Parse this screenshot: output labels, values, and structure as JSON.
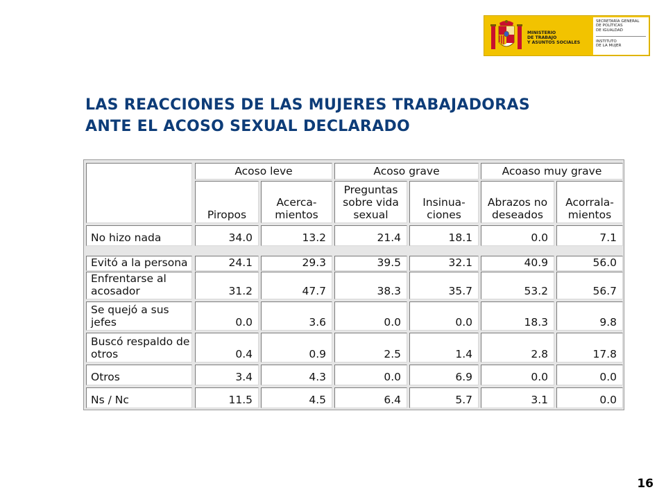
{
  "logo": {
    "ministry": "MINISTERIO\nDE TRABAJO\nY ASUNTOS SOCIALES",
    "secretaria": "SECRETARÍA GENERAL\nDE POLÍTICAS\nDE IGUALDAD",
    "instituto": "INSTITUTO\nDE LA MUJER"
  },
  "title": {
    "line1": "LAS REACCIONES DE LAS MUJERES TRABAJADORAS",
    "line2": "ANTE EL ACOSO SEXUAL DECLARADO"
  },
  "table": {
    "groups": [
      "Acoso leve",
      "Acoso grave",
      "Acoaso muy grave"
    ],
    "columns": [
      "Piropos",
      "Acerca-\nmientos",
      "Preguntas\nsobre vida\nsexual",
      "Insinua-\nciones",
      "Abrazos no\ndeseados",
      "Acorrala-\nmientos"
    ],
    "rows": [
      {
        "label": "No hizo nada",
        "values": [
          "34.0",
          "13.2",
          "21.4",
          "18.1",
          "0.0",
          "7.1"
        ]
      },
      {
        "label": "Evitó a la persona",
        "values": [
          "24.1",
          "29.3",
          "39.5",
          "32.1",
          "40.9",
          "56.0"
        ]
      },
      {
        "label": "Enfrentarse al\nacosador",
        "values": [
          "31.2",
          "47.7",
          "38.3",
          "35.7",
          "53.2",
          "56.7"
        ]
      },
      {
        "label": "Se quejó a sus\njefes",
        "values": [
          "0.0",
          "3.6",
          "0.0",
          "0.0",
          "18.3",
          "9.8"
        ]
      },
      {
        "label": "Buscó respaldo de\notros",
        "values": [
          "0.4",
          "0.9",
          "2.5",
          "1.4",
          "2.8",
          "17.8"
        ]
      },
      {
        "label": "Otros",
        "values": [
          "3.4",
          "4.3",
          "0.0",
          "6.9",
          "0.0",
          "0.0"
        ]
      },
      {
        "label": "Ns / Nc",
        "values": [
          "11.5",
          "4.5",
          "6.4",
          "5.7",
          "3.1",
          "0.0"
        ]
      }
    ]
  },
  "page_number": "16",
  "colors": {
    "title": "#0d3c78",
    "logo_yellow": "#f2c300",
    "table_bg": "#e6e6e6"
  }
}
